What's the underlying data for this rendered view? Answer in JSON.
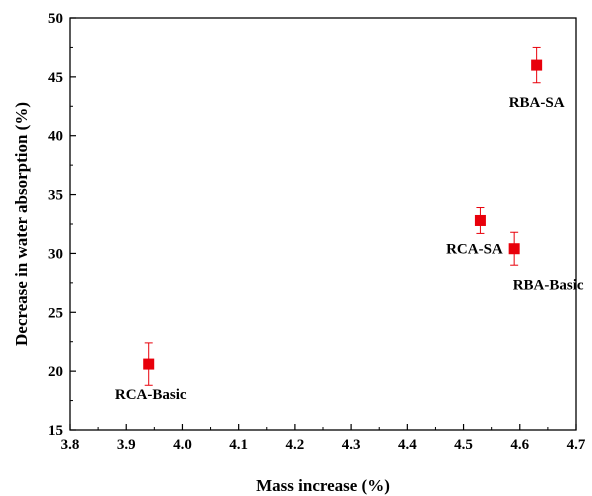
{
  "chart_data": {
    "type": "scatter",
    "title": "",
    "xlabel": "Mass increase (%)",
    "ylabel": "Decrease in water absorption (%)",
    "xlim": [
      3.8,
      4.7
    ],
    "ylim": [
      15,
      50
    ],
    "x_ticks": [
      "3.8",
      "3.9",
      "4.0",
      "4.1",
      "4.2",
      "4.3",
      "4.4",
      "4.5",
      "4.6",
      "4.7"
    ],
    "y_ticks": [
      "15",
      "20",
      "25",
      "30",
      "35",
      "40",
      "45",
      "50"
    ],
    "grid": false,
    "legend": "none",
    "marker_color": "#e8000b",
    "points": [
      {
        "label": "RCA-Basic",
        "x": 3.94,
        "y": 20.6,
        "err": 1.8
      },
      {
        "label": "RCA-SA",
        "x": 4.53,
        "y": 32.8,
        "err": 1.1
      },
      {
        "label": "RBA-Basic",
        "x": 4.59,
        "y": 30.4,
        "err": 1.4
      },
      {
        "label": "RBA-SA",
        "x": 4.63,
        "y": 46.0,
        "err": 1.5
      }
    ]
  }
}
